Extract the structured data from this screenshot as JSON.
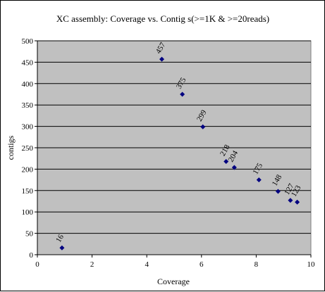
{
  "chart_data": {
    "type": "scatter",
    "title": "XC assembly: Coverage vs. Contig s(>=1K & >=20reads)",
    "xlabel": "Coverage",
    "ylabel": "contigs",
    "xlim": [
      0,
      10
    ],
    "ylim": [
      0,
      500
    ],
    "xticks": [
      0,
      2,
      4,
      6,
      8,
      10
    ],
    "yticks": [
      0,
      50,
      100,
      150,
      200,
      250,
      300,
      350,
      400,
      450,
      500
    ],
    "grid": "horizontal",
    "legend": "none",
    "plot_background": "#c0c0c0",
    "marker_color": "#000080",
    "points": [
      {
        "x": 0.9,
        "y": 16,
        "label": "16"
      },
      {
        "x": 4.55,
        "y": 457,
        "label": "457"
      },
      {
        "x": 5.3,
        "y": 375,
        "label": "375"
      },
      {
        "x": 6.05,
        "y": 299,
        "label": "299"
      },
      {
        "x": 6.9,
        "y": 218,
        "label": "218"
      },
      {
        "x": 7.2,
        "y": 204,
        "label": "204"
      },
      {
        "x": 8.1,
        "y": 175,
        "label": "175"
      },
      {
        "x": 8.8,
        "y": 148,
        "label": "148"
      },
      {
        "x": 9.25,
        "y": 127,
        "label": "127"
      },
      {
        "x": 9.5,
        "y": 123,
        "label": "123"
      }
    ]
  }
}
